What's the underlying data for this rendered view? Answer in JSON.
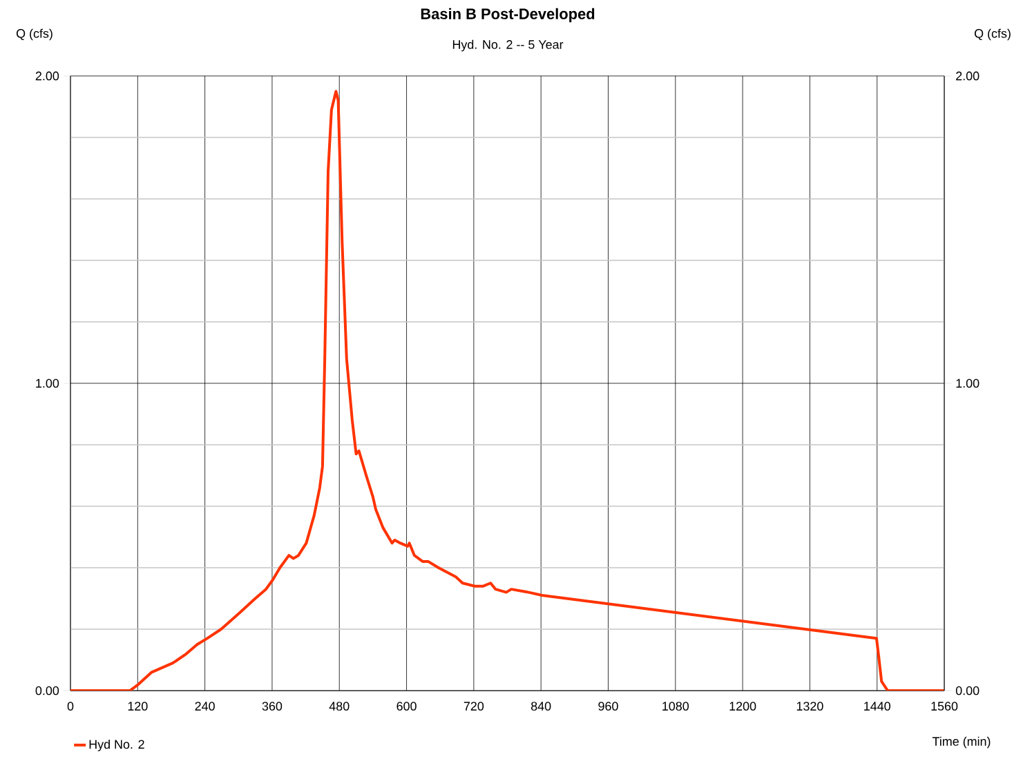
{
  "chart_data": {
    "type": "line",
    "title": "Basin B Post-Developed",
    "subtitle": "Hyd. No. 2 -- 5 Year",
    "xlabel": "Time (min)",
    "ylabel": "Q (cfs)",
    "y2label": "Q (cfs)",
    "x": [
      0,
      106,
      121,
      145,
      183,
      207,
      226,
      244,
      269,
      300,
      330,
      349,
      361,
      374,
      390,
      398,
      407,
      421,
      435,
      445,
      450,
      454,
      460,
      466,
      474,
      478,
      485,
      493,
      503,
      510,
      515,
      528,
      540,
      545,
      558,
      571,
      574,
      579,
      589,
      602,
      605,
      614,
      629,
      639,
      657,
      688,
      700,
      722,
      737,
      750,
      759,
      778,
      787,
      818,
      842,
      1439,
      1443,
      1448,
      1459,
      1465,
      1560
    ],
    "series": [
      {
        "name": "Hyd No. 2",
        "color": "#ff3300",
        "values": [
          0,
          0,
          0.02,
          0.06,
          0.09,
          0.12,
          0.15,
          0.17,
          0.2,
          0.25,
          0.3,
          0.33,
          0.36,
          0.4,
          0.44,
          0.43,
          0.44,
          0.48,
          0.57,
          0.66,
          0.73,
          1.08,
          1.69,
          1.89,
          1.95,
          1.92,
          1.46,
          1.08,
          0.88,
          0.77,
          0.78,
          0.7,
          0.63,
          0.59,
          0.53,
          0.49,
          0.48,
          0.49,
          0.48,
          0.47,
          0.48,
          0.44,
          0.42,
          0.42,
          0.4,
          0.37,
          0.35,
          0.34,
          0.34,
          0.35,
          0.33,
          0.32,
          0.33,
          0.32,
          0.31,
          0.17,
          0.11,
          0.03,
          0,
          0,
          0
        ]
      }
    ],
    "xlim": [
      0,
      1560
    ],
    "xticks": [
      0,
      120,
      240,
      360,
      480,
      600,
      720,
      840,
      960,
      1080,
      1200,
      1320,
      1440,
      1560
    ],
    "ylim": [
      0,
      2
    ],
    "yticks": [
      {
        "value": 0,
        "label": "0.00"
      },
      {
        "value": 0.2,
        "label": null
      },
      {
        "value": 0.4,
        "label": null
      },
      {
        "value": 0.6,
        "label": null
      },
      {
        "value": 0.8,
        "label": null
      },
      {
        "value": 1,
        "label": "1.00"
      },
      {
        "value": 1.2,
        "label": null
      },
      {
        "value": 1.4,
        "label": null
      },
      {
        "value": 1.6,
        "label": null
      },
      {
        "value": 1.8,
        "label": null
      },
      {
        "value": 2,
        "label": "2.00"
      }
    ],
    "y2lim": [
      0,
      2
    ],
    "y2ticks": [
      {
        "value": 0,
        "label": "0.00"
      },
      {
        "value": 1,
        "label": "1.00"
      },
      {
        "value": 2,
        "label": "2.00"
      }
    ],
    "grid": true,
    "legend": "bottom left",
    "line_style": "solid",
    "marker": "none"
  }
}
